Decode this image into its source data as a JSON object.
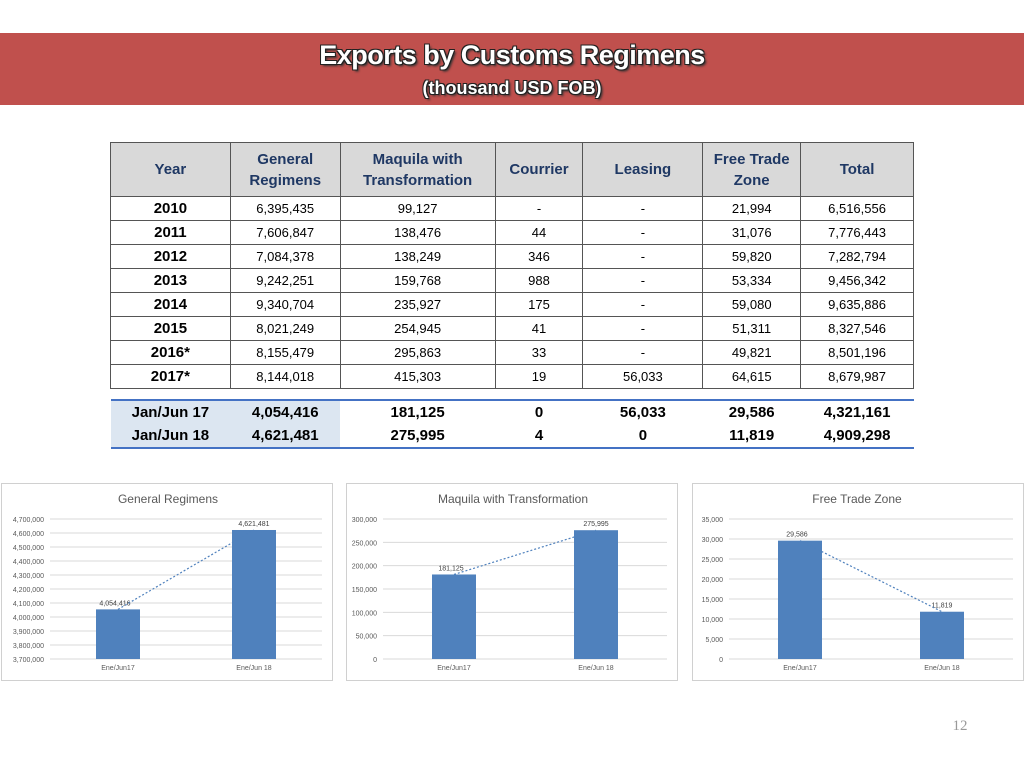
{
  "header": {
    "title": "Exports by Customs Regimens",
    "subtitle": "(thousand USD FOB)"
  },
  "table": {
    "headers": [
      "Year",
      "General Regimens",
      "Maquila with Transformation",
      "Courrier",
      "Leasing",
      "Free Trade Zone",
      "Total"
    ],
    "rows": [
      [
        "2010",
        "6,395,435",
        "99,127",
        "-",
        "-",
        "21,994",
        "6,516,556"
      ],
      [
        "2011",
        "7,606,847",
        "138,476",
        "44",
        "-",
        "31,076",
        "7,776,443"
      ],
      [
        "2012",
        "7,084,378",
        "138,249",
        "346",
        "-",
        "59,820",
        "7,282,794"
      ],
      [
        "2013",
        "9,242,251",
        "159,768",
        "988",
        "-",
        "53,334",
        "9,456,342"
      ],
      [
        "2014",
        "9,340,704",
        "235,927",
        "175",
        "-",
        "59,080",
        "9,635,886"
      ],
      [
        "2015",
        "8,021,249",
        "254,945",
        "41",
        "-",
        "51,311",
        "8,327,546"
      ],
      [
        "2016*",
        "8,155,479",
        "295,863",
        "33",
        "-",
        "49,821",
        "8,501,196"
      ],
      [
        "2017*",
        "8,144,018",
        "415,303",
        "19",
        "56,033",
        "64,615",
        "8,679,987"
      ]
    ],
    "subtotals": [
      [
        "Jan/Jun 17",
        "4,054,416",
        "181,125",
        "0",
        "56,033",
        "29,586",
        "4,321,161"
      ],
      [
        "Jan/Jun 18",
        "4,621,481",
        "275,995",
        "4",
        "0",
        "11,819",
        "4,909,298"
      ]
    ]
  },
  "chart_data": [
    {
      "type": "bar",
      "title": "General Regimens",
      "categories": [
        "Ene/Jun17",
        "Ene/Jun 18"
      ],
      "values": [
        4054416,
        4621481
      ],
      "labels": [
        "4,054,416",
        "4,621,481"
      ],
      "ylim": [
        3700000,
        4700000
      ],
      "yticks": [
        "3,700,000",
        "3,800,000",
        "3,900,000",
        "4,000,000",
        "4,100,000",
        "4,200,000",
        "4,300,000",
        "4,400,000",
        "4,500,000",
        "4,600,000",
        "4,700,000"
      ],
      "trendline": true,
      "grid": true,
      "bar_color": "#4f81bd"
    },
    {
      "type": "bar",
      "title": "Maquila with Transformation",
      "categories": [
        "Ene/Jun17",
        "Ene/Jun 18"
      ],
      "values": [
        181125,
        275995
      ],
      "labels": [
        "181,125",
        "275,995"
      ],
      "ylim": [
        0,
        300000
      ],
      "yticks": [
        "0",
        "50,000",
        "100,000",
        "150,000",
        "200,000",
        "250,000",
        "300,000"
      ],
      "trendline": true,
      "grid": true,
      "bar_color": "#4f81bd"
    },
    {
      "type": "bar",
      "title": "Free Trade Zone",
      "categories": [
        "Ene/Jun17",
        "Ene/Jun 18"
      ],
      "values": [
        29586,
        11819
      ],
      "labels": [
        "29,586",
        "11,819"
      ],
      "ylim": [
        0,
        35000
      ],
      "yticks": [
        "0",
        "5,000",
        "10,000",
        "15,000",
        "20,000",
        "25,000",
        "30,000",
        "35,000"
      ],
      "trendline": true,
      "grid": true,
      "bar_color": "#4f81bd"
    }
  ],
  "footer": {
    "page_number": "12"
  }
}
